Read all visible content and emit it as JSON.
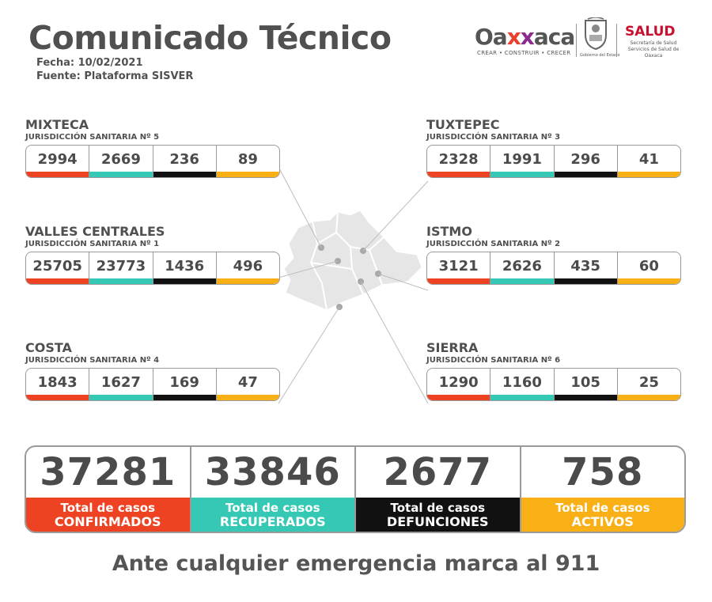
{
  "header": {
    "title": "Comunicado Técnico",
    "fecha": "Fecha: 10/02/2021",
    "fuente": "Fuente: Plataforma SISVER"
  },
  "logos": {
    "oaxaca": {
      "pre": "Oa",
      "x1": "x",
      "x2": "x",
      "post": "aca",
      "tagline": "CREAR • CONSTRUIR • CRECER"
    },
    "gobierno": "Gobierno del Estado",
    "salud": {
      "title": "SALUD",
      "sub1": "Secretaría de Salud",
      "sub2": "Servicios de Salud de Oaxaca"
    }
  },
  "colors": {
    "confirmados": "#ee4323",
    "recuperados": "#35c9b5",
    "defunciones": "#111111",
    "activos": "#f9b017",
    "map_fill": "#e6e6e6"
  },
  "regions": {
    "mixteca": {
      "name": "MIXTECA",
      "jurisdiccion": "JURISDICCIÓN SANITARIA Nº 5",
      "values": [
        "2994",
        "2669",
        "236",
        "89"
      ]
    },
    "tuxtepec": {
      "name": "TUXTEPEC",
      "jurisdiccion": "JURISDICCIÓN SANITARIA Nº 3",
      "values": [
        "2328",
        "1991",
        "296",
        "41"
      ]
    },
    "valles": {
      "name": "VALLES CENTRALES",
      "jurisdiccion": "JURISDICCIÓN SANITARIA Nº 1",
      "values": [
        "25705",
        "23773",
        "1436",
        "496"
      ]
    },
    "istmo": {
      "name": "ISTMO",
      "jurisdiccion": "JURISDICCIÓN SANITARIA Nº 2",
      "values": [
        "3121",
        "2626",
        "435",
        "60"
      ]
    },
    "costa": {
      "name": "COSTA",
      "jurisdiccion": "JURISDICCIÓN SANITARIA Nº 4",
      "values": [
        "1843",
        "1627",
        "169",
        "47"
      ]
    },
    "sierra": {
      "name": "SIERRA",
      "jurisdiccion": "JURISDICCIÓN SANITARIA Nº 6",
      "values": [
        "1290",
        "1160",
        "105",
        "25"
      ]
    }
  },
  "totals": [
    {
      "value": "37281",
      "label1": "Total de casos",
      "label2": "CONFIRMADOS"
    },
    {
      "value": "33846",
      "label1": "Total de casos",
      "label2": "RECUPERADOS"
    },
    {
      "value": "2677",
      "label1": "Total de casos",
      "label2": "DEFUNCIONES"
    },
    {
      "value": "758",
      "label1": "Total de casos",
      "label2": "ACTIVOS"
    }
  ],
  "footer": "Ante cualquier emergencia marca al 911"
}
